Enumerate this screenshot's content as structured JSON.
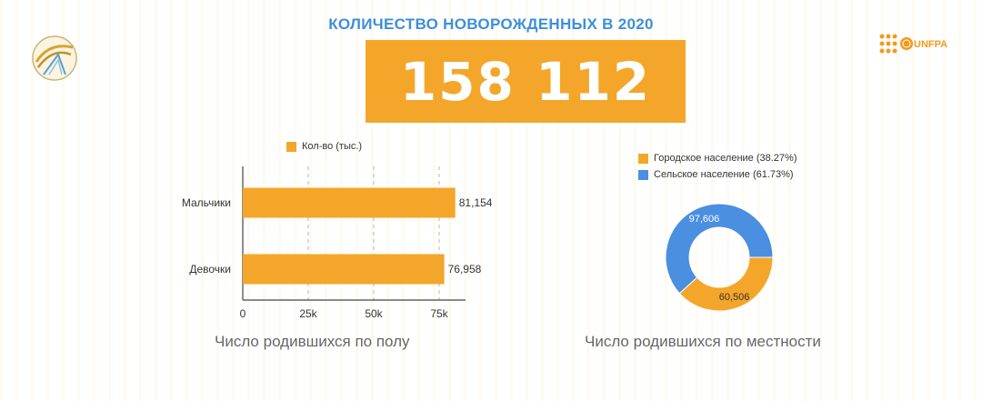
{
  "header": {
    "title": "КОЛИЧЕСТВО НОВОРОЖДЕННЫХ В 2020",
    "total": "158 112"
  },
  "colors": {
    "accent": "#f4a62a",
    "blue": "#4a8fe0",
    "title": "#3d8fd9"
  },
  "logos": {
    "left": "stat-logo-icon",
    "right": "UNFPA"
  },
  "chart_data": [
    {
      "type": "bar",
      "orientation": "horizontal",
      "categories": [
        "Мальчики",
        "Девочки"
      ],
      "series": [
        {
          "name": "Кол-во (тыс.)",
          "values": [
            81154,
            76958
          ]
        }
      ],
      "data_labels": [
        "81,154",
        "76,958"
      ],
      "x_ticks": [
        "0",
        "25k",
        "50k",
        "75k"
      ],
      "xlim": [
        0,
        85000
      ],
      "grid": "vertical dashed",
      "legend": "top",
      "caption": "Число родившихся по полу"
    },
    {
      "type": "pie",
      "donut": true,
      "categories": [
        "Городское население (38.27%)",
        "Сельское население (61.73%)"
      ],
      "values": [
        60506,
        97606
      ],
      "data_labels": [
        "60,506",
        "97,606"
      ],
      "legend": "top",
      "caption": "Число родившихся по местности"
    }
  ]
}
